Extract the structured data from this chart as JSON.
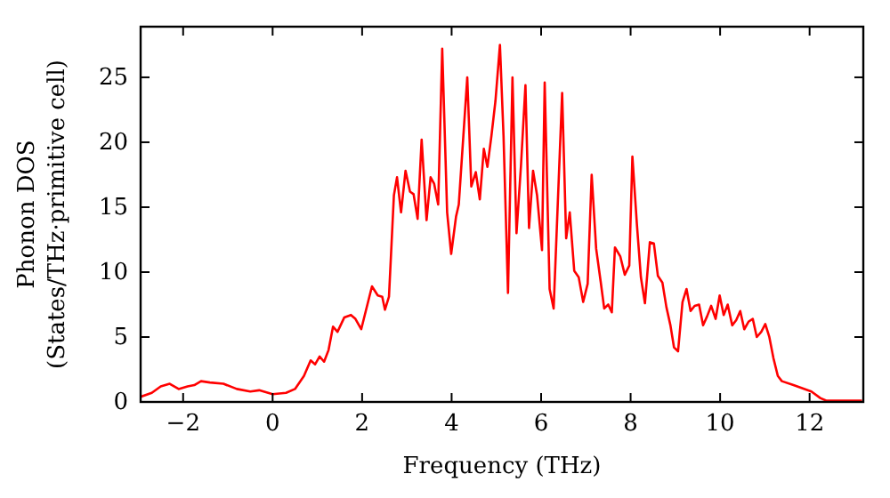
{
  "chart_data": {
    "type": "line",
    "xlabel": "Frequency (THz)",
    "ylabel": "Phonon DOS\n(States/THz·primitive cell)",
    "xlim": [
      -2.95,
      13.2
    ],
    "ylim": [
      0,
      28.9
    ],
    "xticks": [
      -2,
      0,
      2,
      4,
      6,
      8,
      10,
      12
    ],
    "yticks": [
      0,
      5,
      10,
      15,
      20,
      25
    ],
    "grid": false,
    "marker": "none",
    "line_style": "solid",
    "series": [
      {
        "color": "#ff0000",
        "x": [
          -2.95,
          -2.7,
          -2.5,
          -2.3,
          -2.1,
          -1.9,
          -1.75,
          -1.6,
          -1.4,
          -1.1,
          -0.8,
          -0.5,
          -0.3,
          0,
          0.3,
          0.5,
          0.7,
          0.85,
          0.95,
          1.05,
          1.15,
          1.25,
          1.35,
          1.45,
          1.6,
          1.75,
          1.85,
          1.98,
          2.22,
          2.35,
          2.45,
          2.51,
          2.6,
          2.71,
          2.78,
          2.87,
          2.97,
          3.07,
          3.15,
          3.24,
          3.33,
          3.44,
          3.53,
          3.61,
          3.7,
          3.79,
          3.9,
          3.99,
          4.1,
          4.16,
          4.35,
          4.44,
          4.54,
          4.63,
          4.72,
          4.8,
          4.89,
          4.98,
          5.08,
          5.16,
          5.26,
          5.36,
          5.45,
          5.55,
          5.65,
          5.73,
          5.82,
          5.91,
          6.02,
          6.08,
          6.19,
          6.28,
          6.47,
          6.56,
          6.64,
          6.74,
          6.84,
          6.94,
          7.04,
          7.13,
          7.23,
          7.33,
          7.41,
          7.5,
          7.58,
          7.65,
          7.77,
          7.87,
          7.97,
          8.04,
          8.14,
          8.23,
          8.32,
          8.43,
          8.52,
          8.61,
          8.71,
          8.8,
          8.89,
          8.97,
          9.06,
          9.16,
          9.25,
          9.34,
          9.43,
          9.53,
          9.62,
          9.71,
          9.8,
          9.9,
          9.99,
          10.08,
          10.17,
          10.27,
          10.36,
          10.45,
          10.54,
          10.64,
          10.73,
          10.82,
          10.92,
          11.01,
          11.1,
          11.19,
          11.29,
          11.38,
          11.64,
          12.04,
          12.24,
          12.37,
          13.17
        ],
        "values": [
          0.4,
          0.7,
          1.2,
          1.4,
          1.0,
          1.2,
          1.3,
          1.6,
          1.5,
          1.4,
          1.0,
          0.8,
          0.9,
          0.6,
          0.7,
          1.0,
          2.0,
          3.2,
          2.9,
          3.5,
          3.1,
          4.0,
          5.8,
          5.4,
          6.5,
          6.7,
          6.4,
          5.6,
          8.9,
          8.2,
          8.1,
          7.1,
          8.1,
          15.9,
          17.3,
          14.6,
          17.8,
          16.2,
          16.0,
          14.1,
          20.2,
          14.0,
          17.3,
          16.8,
          15.2,
          27.2,
          14.6,
          11.4,
          14.3,
          15.2,
          25.0,
          16.6,
          17.7,
          15.6,
          19.5,
          18.1,
          20.5,
          23.2,
          27.5,
          20.5,
          8.4,
          25.0,
          13.0,
          18.2,
          24.4,
          13.4,
          17.8,
          15.9,
          11.7,
          24.6,
          8.7,
          7.2,
          23.8,
          12.6,
          14.6,
          10.1,
          9.6,
          7.7,
          9.1,
          17.5,
          11.8,
          9.3,
          7.2,
          7.5,
          6.9,
          11.9,
          11.2,
          9.8,
          10.5,
          18.9,
          13.7,
          9.6,
          7.6,
          12.3,
          12.2,
          9.7,
          9.2,
          7.3,
          5.9,
          4.2,
          3.9,
          7.7,
          8.7,
          7.0,
          7.4,
          7.5,
          5.9,
          6.6,
          7.4,
          6.4,
          8.2,
          6.7,
          7.5,
          5.9,
          6.3,
          7.0,
          5.6,
          6.2,
          6.4,
          5.0,
          5.4,
          6.0,
          5.0,
          3.4,
          2.0,
          1.6,
          1.3,
          0.8,
          0.3,
          0.1,
          0.1
        ]
      }
    ]
  }
}
